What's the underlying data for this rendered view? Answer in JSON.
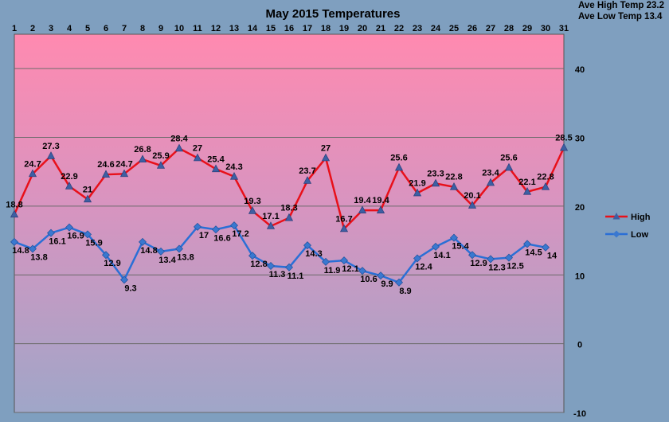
{
  "stats": {
    "ave_high": "Ave High Temp 23.2",
    "ave_low": "Ave Low Temp 13.4"
  },
  "chart_data": {
    "type": "line",
    "title": "May 2015 Temperatures",
    "categories": [
      "1",
      "2",
      "3",
      "4",
      "5",
      "6",
      "7",
      "8",
      "9",
      "10",
      "11",
      "12",
      "13",
      "14",
      "15",
      "16",
      "17",
      "18",
      "19",
      "20",
      "21",
      "22",
      "23",
      "24",
      "25",
      "26",
      "27",
      "28",
      "29",
      "30",
      "31"
    ],
    "series": [
      {
        "name": "High",
        "color": "#e8101a",
        "marker": "triangle",
        "values": [
          18.8,
          24.7,
          27.3,
          22.9,
          21,
          24.6,
          24.7,
          26.8,
          25.9,
          28.4,
          27,
          25.4,
          24.3,
          19.3,
          17.1,
          18.3,
          23.7,
          27,
          16.7,
          19.4,
          19.4,
          25.6,
          21.9,
          23.3,
          22.8,
          20.1,
          23.4,
          25.6,
          22.1,
          22.8,
          28.5
        ]
      },
      {
        "name": "Low",
        "color": "#2a6fd6",
        "marker": "diamond",
        "values": [
          14.8,
          13.8,
          16.1,
          16.9,
          15.9,
          12.9,
          9.3,
          14.8,
          13.4,
          13.8,
          17,
          16.6,
          17.2,
          12.8,
          11.3,
          11.1,
          14.3,
          11.9,
          12.1,
          10.6,
          9.9,
          8.9,
          12.4,
          14.1,
          15.4,
          12.9,
          12.3,
          12.5,
          14.5,
          14,
          null
        ]
      }
    ],
    "y_ticks": [
      "40",
      "30",
      "20",
      "10",
      "0",
      "-10"
    ],
    "ylim": [
      -10,
      45
    ],
    "grid": true,
    "legend": "right"
  }
}
